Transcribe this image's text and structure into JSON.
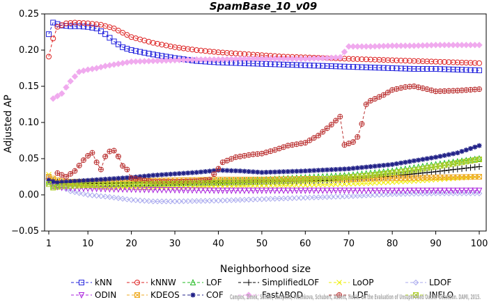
{
  "chart_data": {
    "type": "line",
    "title": "SpamBase_10_v09",
    "xlabel": "Neighborhood size",
    "ylabel": "Adjusted AP",
    "xlim": [
      1,
      100
    ],
    "ylim": [
      -0.05,
      0.25
    ],
    "x_ticks": [
      "1",
      "10",
      "20",
      "30",
      "40",
      "50",
      "60",
      "70",
      "80",
      "90",
      "100"
    ],
    "y_ticks": [
      "−0.05",
      "0.00",
      "0.05",
      "0.10",
      "0.15",
      "0.20",
      "0.25"
    ],
    "grid": false,
    "legend_position": "bottom",
    "credit": "Campos, Zimek, Sander, Campello, Micenkova, Schubert, Assent, Houle. On the Evaluation of Unsupervised Outlier Detection. DAMI, 2015.",
    "series": [
      {
        "name": "kNN",
        "color": "#2222dd",
        "marker": "square",
        "dash": "4,3",
        "points": [
          [
            1,
            0.222
          ],
          [
            2,
            0.238
          ],
          [
            4,
            0.234
          ],
          [
            6,
            0.233
          ],
          [
            8,
            0.233
          ],
          [
            10,
            0.232
          ],
          [
            12,
            0.23
          ],
          [
            14,
            0.222
          ],
          [
            16,
            0.212
          ],
          [
            18,
            0.204
          ],
          [
            20,
            0.2
          ],
          [
            25,
            0.194
          ],
          [
            30,
            0.189
          ],
          [
            35,
            0.185
          ],
          [
            40,
            0.183
          ],
          [
            45,
            0.182
          ],
          [
            50,
            0.181
          ],
          [
            55,
            0.18
          ],
          [
            60,
            0.179
          ],
          [
            65,
            0.178
          ],
          [
            70,
            0.177
          ],
          [
            75,
            0.176
          ],
          [
            80,
            0.175
          ],
          [
            85,
            0.174
          ],
          [
            90,
            0.174
          ],
          [
            95,
            0.173
          ],
          [
            100,
            0.172
          ]
        ]
      },
      {
        "name": "kNNW",
        "color": "#dd2222",
        "marker": "circle",
        "dash": "4,3",
        "points": [
          [
            1,
            0.191
          ],
          [
            2,
            0.216
          ],
          [
            3,
            0.232
          ],
          [
            5,
            0.237
          ],
          [
            7,
            0.238
          ],
          [
            10,
            0.237
          ],
          [
            13,
            0.235
          ],
          [
            16,
            0.23
          ],
          [
            18,
            0.224
          ],
          [
            20,
            0.218
          ],
          [
            25,
            0.21
          ],
          [
            30,
            0.204
          ],
          [
            35,
            0.2
          ],
          [
            40,
            0.197
          ],
          [
            45,
            0.195
          ],
          [
            50,
            0.193
          ],
          [
            55,
            0.191
          ],
          [
            60,
            0.19
          ],
          [
            65,
            0.189
          ],
          [
            70,
            0.188
          ],
          [
            75,
            0.187
          ],
          [
            80,
            0.186
          ],
          [
            85,
            0.185
          ],
          [
            90,
            0.184
          ],
          [
            95,
            0.183
          ],
          [
            100,
            0.182
          ]
        ]
      },
      {
        "name": "LOF",
        "color": "#22bb22",
        "marker": "triangle",
        "dash": "4,3",
        "points": [
          [
            1,
            0.018
          ],
          [
            2,
            0.012
          ],
          [
            4,
            0.014
          ],
          [
            6,
            0.015
          ],
          [
            10,
            0.015
          ],
          [
            15,
            0.016
          ],
          [
            20,
            0.016
          ],
          [
            30,
            0.017
          ],
          [
            40,
            0.019
          ],
          [
            50,
            0.021
          ],
          [
            60,
            0.024
          ],
          [
            70,
            0.027
          ],
          [
            80,
            0.033
          ],
          [
            90,
            0.042
          ],
          [
            100,
            0.05
          ]
        ]
      },
      {
        "name": "SimplifiedLOF",
        "color": "#000000",
        "marker": "plus",
        "dash": "4,3",
        "points": [
          [
            1,
            0.022
          ],
          [
            3,
            0.018
          ],
          [
            6,
            0.017
          ],
          [
            10,
            0.016
          ],
          [
            20,
            0.016
          ],
          [
            30,
            0.016
          ],
          [
            40,
            0.017
          ],
          [
            50,
            0.018
          ],
          [
            60,
            0.019
          ],
          [
            70,
            0.021
          ],
          [
            80,
            0.026
          ],
          [
            90,
            0.032
          ],
          [
            100,
            0.039
          ]
        ]
      },
      {
        "name": "LoOP",
        "color": "#eeee00",
        "marker": "x",
        "dash": "4,3",
        "points": [
          [
            1,
            0.028
          ],
          [
            2,
            0.022
          ],
          [
            4,
            0.016
          ],
          [
            8,
            0.012
          ],
          [
            15,
            0.01
          ],
          [
            25,
            0.01
          ],
          [
            35,
            0.011
          ],
          [
            45,
            0.012
          ],
          [
            55,
            0.013
          ],
          [
            65,
            0.014
          ],
          [
            75,
            0.016
          ],
          [
            85,
            0.019
          ],
          [
            100,
            0.025
          ]
        ]
      },
      {
        "name": "LDOF",
        "color": "#aaaaee",
        "marker": "diamond",
        "dash": "4,3",
        "points": [
          [
            1,
            0.024
          ],
          [
            3,
            0.014
          ],
          [
            6,
            0.005
          ],
          [
            10,
            0.0
          ],
          [
            15,
            -0.003
          ],
          [
            20,
            -0.007
          ],
          [
            25,
            -0.009
          ],
          [
            30,
            -0.009
          ],
          [
            40,
            -0.008
          ],
          [
            50,
            -0.006
          ],
          [
            60,
            -0.004
          ],
          [
            70,
            -0.002
          ],
          [
            80,
            0.001
          ],
          [
            90,
            0.002
          ],
          [
            100,
            0.002
          ]
        ]
      },
      {
        "name": "ODIN",
        "color": "#aa22dd",
        "marker": "triangle-down",
        "dash": "4,3",
        "points": [
          [
            1,
            0.02
          ],
          [
            2,
            0.012
          ],
          [
            4,
            0.01
          ],
          [
            8,
            0.009
          ],
          [
            15,
            0.008
          ],
          [
            25,
            0.007
          ],
          [
            40,
            0.006
          ],
          [
            60,
            0.006
          ],
          [
            80,
            0.006
          ],
          [
            100,
            0.006
          ]
        ]
      },
      {
        "name": "KDEOS",
        "color": "#eeaa22",
        "marker": "square-x",
        "dash": "4,3",
        "points": [
          [
            1,
            0.025
          ],
          [
            3,
            0.02
          ],
          [
            5,
            0.018
          ],
          [
            10,
            0.018
          ],
          [
            20,
            0.019
          ],
          [
            30,
            0.02
          ],
          [
            40,
            0.021
          ],
          [
            50,
            0.021
          ],
          [
            60,
            0.022
          ],
          [
            70,
            0.022
          ],
          [
            80,
            0.023
          ],
          [
            90,
            0.024
          ],
          [
            100,
            0.025
          ]
        ]
      },
      {
        "name": "COF",
        "color": "#222288",
        "marker": "star",
        "dash": "4,3",
        "points": [
          [
            1,
            0.02
          ],
          [
            3,
            0.017
          ],
          [
            5,
            0.018
          ],
          [
            10,
            0.02
          ],
          [
            15,
            0.022
          ],
          [
            20,
            0.024
          ],
          [
            25,
            0.027
          ],
          [
            30,
            0.029
          ],
          [
            35,
            0.031
          ],
          [
            40,
            0.034
          ],
          [
            45,
            0.033
          ],
          [
            50,
            0.031
          ],
          [
            60,
            0.033
          ],
          [
            70,
            0.036
          ],
          [
            80,
            0.042
          ],
          [
            90,
            0.052
          ],
          [
            95,
            0.058
          ],
          [
            100,
            0.068
          ]
        ]
      },
      {
        "name": "FastABOD",
        "color": "#f0aaee",
        "marker": "diamond-filled",
        "dash": "4,3",
        "points": [
          [
            2,
            0.133
          ],
          [
            4,
            0.14
          ],
          [
            6,
            0.157
          ],
          [
            8,
            0.17
          ],
          [
            10,
            0.173
          ],
          [
            12,
            0.175
          ],
          [
            14,
            0.178
          ],
          [
            17,
            0.181
          ],
          [
            20,
            0.184
          ],
          [
            25,
            0.185
          ],
          [
            30,
            0.186
          ],
          [
            35,
            0.187
          ],
          [
            40,
            0.187
          ],
          [
            45,
            0.188
          ],
          [
            50,
            0.188
          ],
          [
            55,
            0.188
          ],
          [
            60,
            0.188
          ],
          [
            65,
            0.189
          ],
          [
            68,
            0.19
          ],
          [
            70,
            0.205
          ],
          [
            75,
            0.205
          ],
          [
            80,
            0.206
          ],
          [
            85,
            0.206
          ],
          [
            90,
            0.207
          ],
          [
            95,
            0.207
          ],
          [
            100,
            0.207
          ]
        ]
      },
      {
        "name": "LDF",
        "color": "#bb3333",
        "marker": "circle-plus",
        "dash": "4,3",
        "points": [
          [
            3,
            0.03
          ],
          [
            5,
            0.025
          ],
          [
            7,
            0.033
          ],
          [
            9,
            0.048
          ],
          [
            10,
            0.054
          ],
          [
            11,
            0.058
          ],
          [
            12,
            0.045
          ],
          [
            13,
            0.035
          ],
          [
            14,
            0.053
          ],
          [
            15,
            0.06
          ],
          [
            16,
            0.061
          ],
          [
            17,
            0.053
          ],
          [
            18,
            0.04
          ],
          [
            19,
            0.035
          ],
          [
            20,
            0.023
          ],
          [
            25,
            0.018
          ],
          [
            30,
            0.018
          ],
          [
            35,
            0.019
          ],
          [
            38,
            0.021
          ],
          [
            40,
            0.036
          ],
          [
            41,
            0.045
          ],
          [
            44,
            0.052
          ],
          [
            48,
            0.056
          ],
          [
            50,
            0.057
          ],
          [
            53,
            0.062
          ],
          [
            56,
            0.068
          ],
          [
            60,
            0.072
          ],
          [
            63,
            0.082
          ],
          [
            66,
            0.097
          ],
          [
            68,
            0.108
          ],
          [
            69,
            0.069
          ],
          [
            71,
            0.073
          ],
          [
            72,
            0.08
          ],
          [
            73,
            0.098
          ],
          [
            74,
            0.125
          ],
          [
            75,
            0.13
          ],
          [
            78,
            0.138
          ],
          [
            80,
            0.145
          ],
          [
            83,
            0.149
          ],
          [
            85,
            0.15
          ],
          [
            88,
            0.146
          ],
          [
            90,
            0.143
          ],
          [
            95,
            0.144
          ],
          [
            100,
            0.146
          ]
        ]
      },
      {
        "name": "INFLO",
        "color": "#aacc22",
        "marker": "square-x",
        "dash": "4,3",
        "points": [
          [
            1,
            0.015
          ],
          [
            2,
            0.01
          ],
          [
            4,
            0.012
          ],
          [
            8,
            0.013
          ],
          [
            15,
            0.014
          ],
          [
            25,
            0.015
          ],
          [
            35,
            0.016
          ],
          [
            45,
            0.017
          ],
          [
            55,
            0.019
          ],
          [
            65,
            0.022
          ],
          [
            75,
            0.027
          ],
          [
            85,
            0.034
          ],
          [
            95,
            0.044
          ],
          [
            100,
            0.049
          ]
        ]
      }
    ]
  }
}
